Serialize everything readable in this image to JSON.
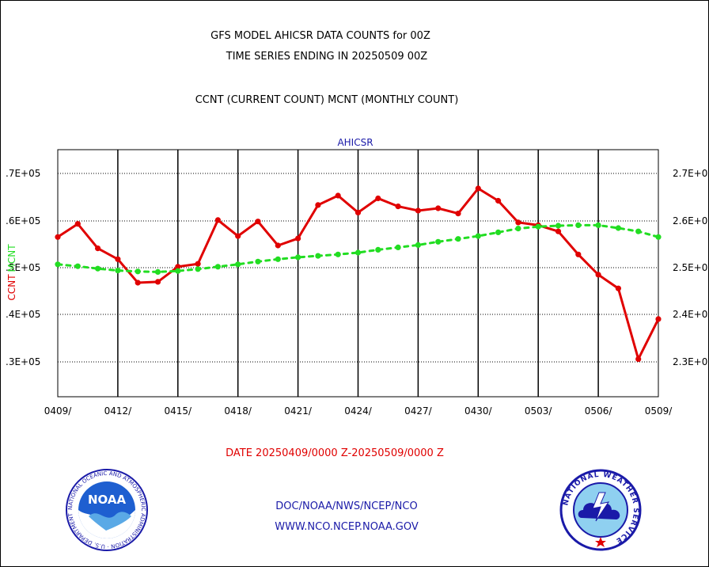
{
  "header": {
    "title_line1": "GFS MODEL AHICSR DATA COUNTS for 00Z",
    "title_line2": "TIME SERIES ENDING IN 20250509 00Z",
    "subtitle": "CCNT (CURRENT COUNT) MCNT (MONTHLY COUNT)"
  },
  "footer": {
    "date_range": "DATE 20250409/0000 Z-20250509/0000 Z",
    "credit_line1": "DOC/NOAA/NWS/NCEP/NCO",
    "credit_line2": "WWW.NCO.NCEP.NOAA.GOV"
  },
  "logos": {
    "left": "noaa-logo",
    "left_text": "NOAA",
    "left_ring_text": "NATIONAL OCEANIC AND ATMOSPHERIC ADMINISTRATION · U.S. DEPARTMENT OF COMMERCE",
    "right": "nws-logo",
    "right_ring_text": "NATIONAL WEATHER SERVICE"
  },
  "chart_data": {
    "type": "line",
    "title": "AHICSR",
    "ylabel_left_1": "CCNT",
    "ylabel_left_2": "MCNT",
    "x_ticks": [
      "0409/",
      "0412/",
      "0415/",
      "0418/",
      "0421/",
      "0424/",
      "0427/",
      "0430/",
      "0503/",
      "0506/",
      "0509/"
    ],
    "x_range": [
      0,
      30
    ],
    "y_left_ticks": [
      ".3E+05",
      ".4E+05",
      ".5E+05",
      ".6E+05",
      ".7E+05"
    ],
    "y_right_ticks": [
      "2.3E+0",
      "2.4E+0",
      "2.5E+0",
      "2.6E+0",
      "2.7E+0"
    ],
    "y_range_left": [
      2270000,
      2740000
    ],
    "y_range_right": [
      2270000,
      2740000
    ],
    "grid": true,
    "colors": {
      "ccnt": "#e00000",
      "mcnt": "#22dd22",
      "title": "#1a1aa8"
    },
    "series": [
      {
        "name": "CCNT",
        "axis": "left",
        "style": "solid",
        "x": [
          0,
          1,
          2,
          3,
          4,
          5,
          6,
          7,
          8,
          9,
          10,
          11,
          12,
          13,
          14,
          15,
          16,
          17,
          18,
          19,
          20,
          21,
          22,
          23,
          24,
          25,
          26,
          27,
          28,
          29,
          30
        ],
        "values": [
          2565000,
          2593000,
          2541000,
          2518000,
          2468000,
          2470000,
          2502000,
          2508000,
          2601000,
          2567000,
          2598000,
          2547000,
          2562000,
          2633000,
          2653000,
          2617000,
          2647000,
          2630000,
          2621000,
          2626000,
          2615000,
          2668000,
          2642000,
          2596000,
          2590000,
          2577000,
          2528000,
          2485000,
          2456000,
          2306000,
          2391000
        ]
      },
      {
        "name": "MCNT",
        "axis": "right",
        "style": "dashed",
        "x": [
          0,
          1,
          2,
          3,
          4,
          5,
          6,
          7,
          8,
          9,
          10,
          11,
          12,
          13,
          14,
          15,
          16,
          17,
          18,
          19,
          20,
          21,
          22,
          23,
          24,
          25,
          26,
          27,
          28,
          29,
          30
        ],
        "values": [
          2507000,
          2503000,
          2498000,
          2494000,
          2492000,
          2491000,
          2493000,
          2497000,
          2502000,
          2507000,
          2513000,
          2518000,
          2522000,
          2525000,
          2528000,
          2532000,
          2538000,
          2543000,
          2548000,
          2555000,
          2561000,
          2567000,
          2575000,
          2583000,
          2587000,
          2589000,
          2590000,
          2590000,
          2584000,
          2577000,
          2565000
        ]
      }
    ]
  }
}
